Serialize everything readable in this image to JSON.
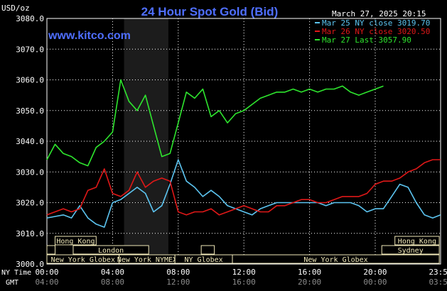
{
  "header": {
    "title": "24 Hour Spot Gold (Bid)",
    "unit": "USD/oz",
    "datetime": "March 27, 2025 20:15",
    "brand": "www.kitco.com"
  },
  "colors": {
    "background": "#000000",
    "grid": "#ffffff",
    "title": "#4f6fff",
    "brand": "#4f6fff",
    "session_band": "#1c1c1c",
    "session_fill": "#f0e8b8",
    "series_blue": "#5cc4f0",
    "series_red": "#e01818",
    "series_green": "#2ee62e"
  },
  "sessions": {
    "row1": [
      {
        "label": "Hong Kong",
        "start": 0.5,
        "end": 3
      },
      {
        "label": "Hong Kong",
        "start": 21.2,
        "end": 23.9
      }
    ],
    "row2": [
      {
        "label": "",
        "start": 0.0,
        "end": 0.5
      },
      {
        "label": "London",
        "start": 1.6,
        "end": 6.2
      },
      {
        "label": "",
        "start": 9.4,
        "end": 10.2
      },
      {
        "label": "Sydney",
        "start": 20.4,
        "end": 23.9
      }
    ],
    "row3": [
      {
        "label": "New York Globex",
        "start": 0.0,
        "end": 4.4
      },
      {
        "label": "New York NYMEX",
        "start": 4.4,
        "end": 7.8
      },
      {
        "label": "NY Globex",
        "start": 7.8,
        "end": 11.3
      },
      {
        "label": "New York Globex",
        "start": 11.3,
        "end": 23.9
      }
    ]
  },
  "axis_labels": {
    "primary_label": "NY Time",
    "secondary_label": "GMT",
    "gmt_ticks": [
      "04:00",
      "08:00",
      "12:00",
      "16:00",
      "20:00",
      "00:00",
      "03:59"
    ]
  },
  "chart_data": {
    "type": "line",
    "title": "24 Hour Spot Gold (Bid)",
    "ylabel": "USD/oz",
    "ylim": [
      3000,
      3080
    ],
    "yticks": [
      "3000.0",
      "3010.0",
      "3020.0",
      "3030.0",
      "3040.0",
      "3050.0",
      "3060.0",
      "3070.0",
      "3080.0"
    ],
    "xlim": [
      0,
      23.983
    ],
    "xticks": [
      "00:00",
      "04:00",
      "08:00",
      "12:00",
      "16:00",
      "20:00",
      "23:59"
    ],
    "highlight_range": [
      4.7,
      7.4
    ],
    "grid": true,
    "legend_position": "top-right",
    "series": [
      {
        "name": "Mar 25 NY close 3019.70",
        "color": "#5cc4f0",
        "x": [
          0,
          1,
          1.5,
          2,
          2.5,
          3,
          3.5,
          4,
          4.5,
          5,
          5.5,
          6,
          6.5,
          7,
          7.5,
          8,
          8.5,
          9,
          9.5,
          10,
          10.5,
          11,
          11.5,
          12,
          12.5,
          13,
          13.5,
          14,
          14.5,
          15,
          15.5,
          16,
          16.5,
          17,
          17.5,
          18,
          18.5,
          19,
          19.5,
          20,
          20.5,
          21,
          21.5,
          22,
          22.5,
          23,
          23.5,
          23.98
        ],
        "values": [
          3015,
          3016,
          3015,
          3019,
          3015,
          3013,
          3012,
          3020,
          3021,
          3023,
          3025,
          3023,
          3017,
          3019,
          3026,
          3034,
          3027,
          3025,
          3022,
          3024,
          3022,
          3019,
          3018,
          3017,
          3016,
          3018,
          3019,
          3020,
          3020,
          3020,
          3020,
          3020,
          3020,
          3019,
          3020,
          3020,
          3020,
          3019,
          3017,
          3018,
          3018,
          3022,
          3026,
          3025,
          3020,
          3016,
          3015,
          3016
        ]
      },
      {
        "name": "Mar 26 NY close 3020.50",
        "color": "#e01818",
        "x": [
          0,
          1,
          1.5,
          2,
          2.5,
          3,
          3.5,
          4,
          4.5,
          5,
          5.5,
          6,
          6.5,
          7,
          7.5,
          8,
          8.5,
          9,
          9.5,
          10,
          10.5,
          11,
          11.5,
          12,
          12.5,
          13,
          13.5,
          14,
          14.5,
          15,
          15.5,
          16,
          16.5,
          17,
          17.5,
          18,
          18.5,
          19,
          19.5,
          20,
          20.5,
          21,
          21.5,
          22,
          22.5,
          23,
          23.5,
          23.98
        ],
        "values": [
          3016,
          3018,
          3017,
          3018,
          3024,
          3025,
          3031,
          3023,
          3022,
          3024,
          3030,
          3025,
          3027,
          3028,
          3027,
          3017,
          3016,
          3017,
          3017,
          3018,
          3016,
          3017,
          3018,
          3019,
          3018,
          3017,
          3017,
          3019,
          3019,
          3020,
          3021,
          3021,
          3020,
          3020,
          3021,
          3022,
          3022,
          3022,
          3023,
          3026,
          3027,
          3027,
          3028,
          3030,
          3031,
          3033,
          3034,
          3034
        ]
      },
      {
        "name": "Mar 27 Last 3057.90",
        "color": "#2ee62e",
        "x": [
          0,
          0.5,
          1,
          1.5,
          2,
          2.5,
          3,
          3.5,
          4,
          4.5,
          5,
          5.5,
          6,
          6.5,
          7,
          7.5,
          8,
          8.5,
          9,
          9.5,
          10,
          10.5,
          11,
          11.5,
          12,
          12.5,
          13,
          13.5,
          14,
          14.5,
          15,
          15.5,
          16,
          16.5,
          17,
          17.5,
          18,
          18.5,
          19,
          19.5,
          20,
          20.5
        ],
        "values": [
          3034,
          3039,
          3036,
          3035,
          3033,
          3032,
          3038,
          3040,
          3043,
          3060,
          3053,
          3050,
          3055,
          3045,
          3035,
          3036,
          3046,
          3056,
          3054,
          3057,
          3048,
          3050,
          3046,
          3049,
          3050,
          3052,
          3054,
          3055,
          3056,
          3056,
          3057,
          3056,
          3057,
          3056,
          3057,
          3057,
          3058,
          3056,
          3055,
          3056,
          3057,
          3058
        ]
      }
    ]
  }
}
